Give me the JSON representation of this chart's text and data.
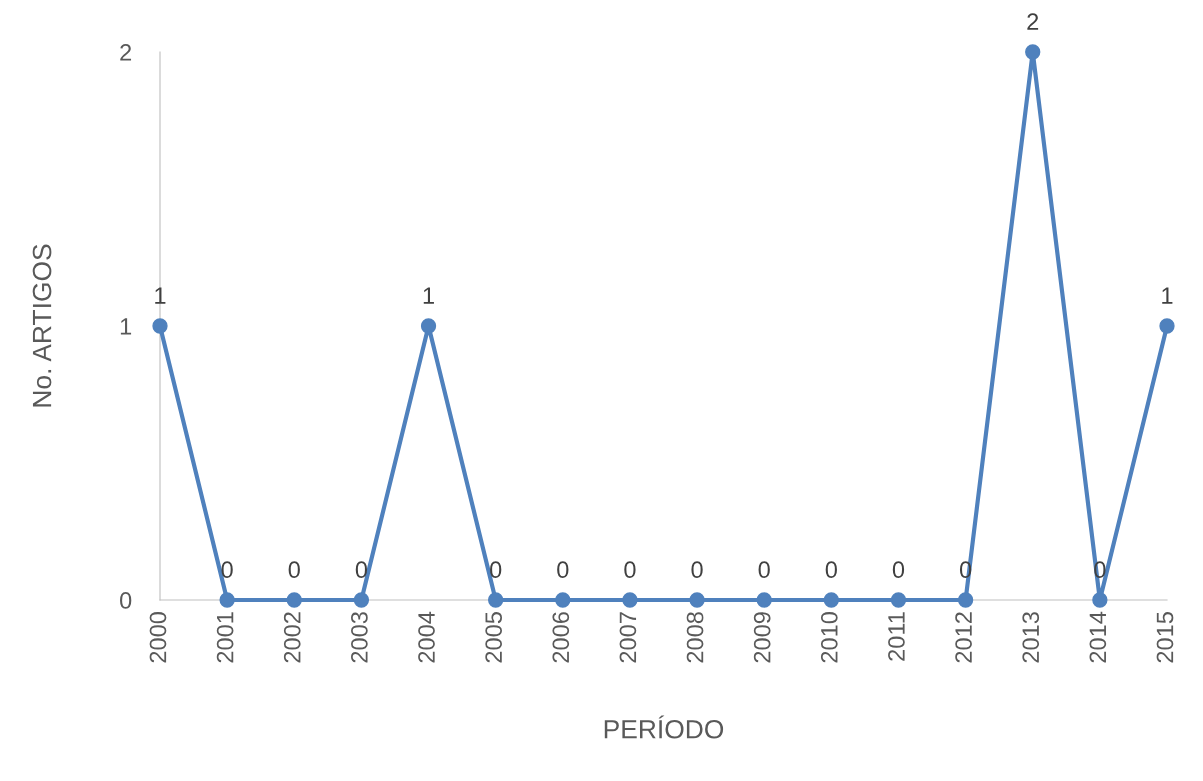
{
  "chart_data": {
    "type": "line",
    "xlabel": "PERÍODO",
    "ylabel": "No. ARTIGOS",
    "categories": [
      "2000",
      "2001",
      "2002",
      "2003",
      "2004",
      "2005",
      "2006",
      "2007",
      "2008",
      "2009",
      "2010",
      "2011",
      "2012",
      "2013",
      "2014",
      "2015"
    ],
    "series": [
      {
        "color": "#4f81bd",
        "values": [
          1,
          0,
          0,
          0,
          1,
          0,
          0,
          0,
          0,
          0,
          0,
          0,
          0,
          2,
          0,
          1
        ]
      }
    ],
    "ylim": [
      0,
      2
    ],
    "yticks": [
      0,
      1,
      2
    ],
    "data_labels": true,
    "marker": "circle",
    "grid": false,
    "legend": false
  }
}
